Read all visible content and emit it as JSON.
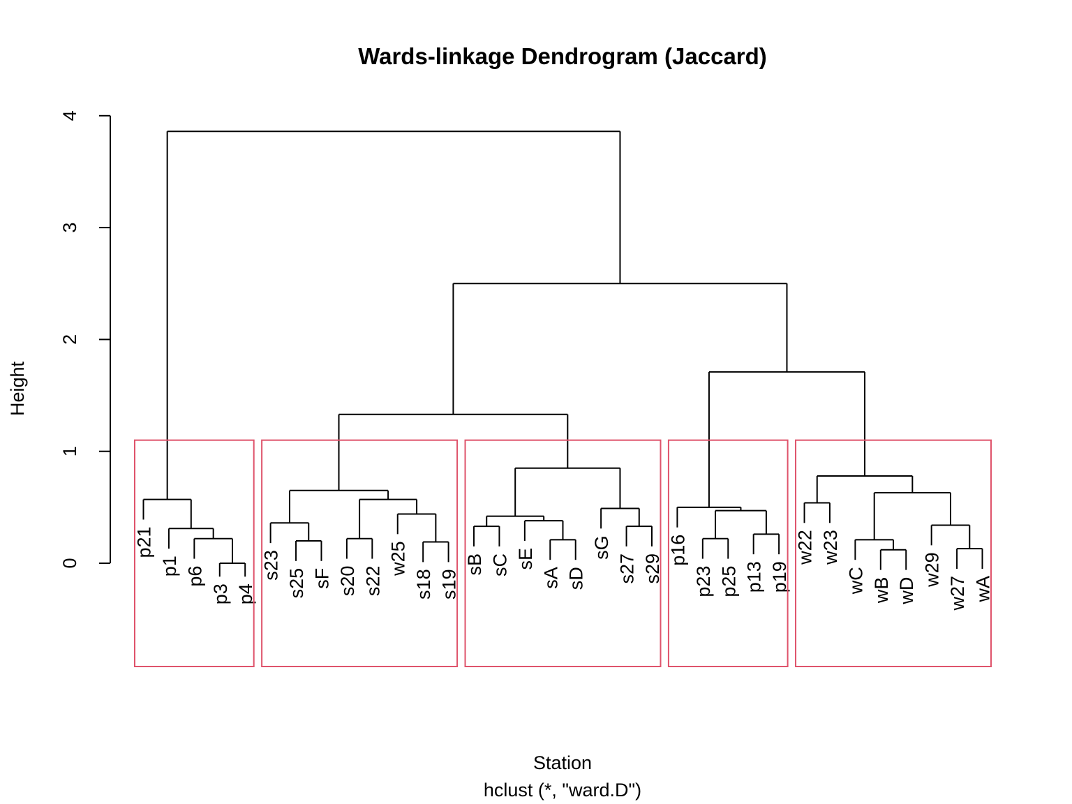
{
  "chart_data": {
    "type": "dendrogram",
    "title": "Wards-linkage Dendrogram (Jaccard)",
    "xlabel": "Station",
    "sub": "hclust (*, \"ward.D\")",
    "ylabel": "Height",
    "ylim": [
      0,
      4
    ],
    "yticks": [
      0,
      1,
      2,
      3,
      4
    ],
    "hang": 0.18,
    "leaves": [
      "p21",
      "p1",
      "p6",
      "p3",
      "p4",
      "s23",
      "s25",
      "sF",
      "s20",
      "s22",
      "w25",
      "s18",
      "s19",
      "sB",
      "sC",
      "sE",
      "sA",
      "sD",
      "sG",
      "s27",
      "s29",
      "p16",
      "p23",
      "p25",
      "p13",
      "p19",
      "w22",
      "w23",
      "wC",
      "wB",
      "wD",
      "w29",
      "w27",
      "wA"
    ],
    "tree": {
      "h": 3.86,
      "c": [
        {
          "h": 0.57,
          "c": [
            "p21",
            {
              "h": 0.31,
              "c": [
                "p1",
                {
                  "h": 0.22,
                  "c": [
                    "p6",
                    {
                      "h": 0.0,
                      "c": [
                        "p3",
                        "p4"
                      ]
                    }
                  ]
                }
              ]
            }
          ]
        },
        {
          "h": 2.5,
          "c": [
            {
              "h": 1.33,
              "c": [
                {
                  "h": 0.65,
                  "c": [
                    {
                      "h": 0.36,
                      "c": [
                        "s23",
                        {
                          "h": 0.2,
                          "c": [
                            "s25",
                            "sF"
                          ]
                        }
                      ]
                    },
                    {
                      "h": 0.57,
                      "c": [
                        {
                          "h": 0.22,
                          "c": [
                            "s20",
                            "s22"
                          ]
                        },
                        {
                          "h": 0.44,
                          "c": [
                            "w25",
                            {
                              "h": 0.19,
                              "c": [
                                "s18",
                                "s19"
                              ]
                            }
                          ]
                        }
                      ]
                    }
                  ]
                },
                {
                  "h": 0.85,
                  "c": [
                    {
                      "h": 0.42,
                      "c": [
                        {
                          "h": 0.33,
                          "c": [
                            "sB",
                            "sC"
                          ]
                        },
                        {
                          "h": 0.38,
                          "c": [
                            "sE",
                            {
                              "h": 0.21,
                              "c": [
                                "sA",
                                "sD"
                              ]
                            }
                          ]
                        }
                      ]
                    },
                    {
                      "h": 0.49,
                      "c": [
                        "sG",
                        {
                          "h": 0.33,
                          "c": [
                            "s27",
                            "s29"
                          ]
                        }
                      ]
                    }
                  ]
                }
              ]
            },
            {
              "h": 1.71,
              "c": [
                {
                  "h": 0.5,
                  "c": [
                    "p16",
                    {
                      "h": 0.47,
                      "c": [
                        {
                          "h": 0.22,
                          "c": [
                            "p23",
                            "p25"
                          ]
                        },
                        {
                          "h": 0.26,
                          "c": [
                            "p13",
                            "p19"
                          ]
                        }
                      ]
                    }
                  ]
                },
                {
                  "h": 0.78,
                  "c": [
                    {
                      "h": 0.54,
                      "c": [
                        "w22",
                        "w23"
                      ]
                    },
                    {
                      "h": 0.63,
                      "c": [
                        {
                          "h": 0.21,
                          "c": [
                            "wC",
                            {
                              "h": 0.12,
                              "c": [
                                "wB",
                                "wD"
                              ]
                            }
                          ]
                        },
                        {
                          "h": 0.34,
                          "c": [
                            "w29",
                            {
                              "h": 0.13,
                              "c": [
                                "w27",
                                "wA"
                              ]
                            }
                          ]
                        }
                      ]
                    }
                  ]
                }
              ]
            }
          ]
        }
      ]
    },
    "clusters": [
      {
        "first": 0,
        "last": 4
      },
      {
        "first": 5,
        "last": 12
      },
      {
        "first": 13,
        "last": 20
      },
      {
        "first": 21,
        "last": 25
      },
      {
        "first": 26,
        "last": 33
      }
    ],
    "cluster_cut_height": 1.1,
    "cluster_color": "#DF536B",
    "line_color": "#000000"
  }
}
